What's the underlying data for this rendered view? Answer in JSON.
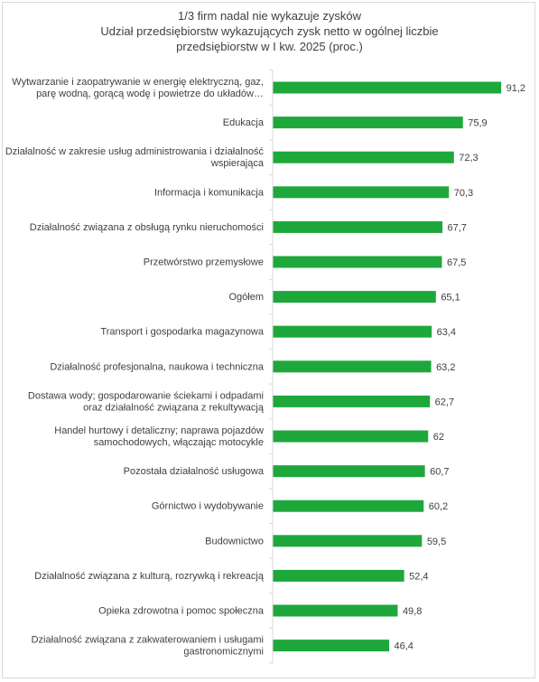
{
  "chart_data": {
    "type": "bar",
    "orientation": "horizontal",
    "title": [
      "1/3 firm nadal nie wykazuje zysków",
      "Udział  przedsiębiorstw wykazujących zysk netto w ogólnej liczbie",
      "przedsiębiorstw w I kw. 2025 (proc.)"
    ],
    "categories": [
      [
        "Wytwarzanie i zaopatrywanie w energię elektryczną, gaz,",
        "parę wodną, gorącą wodę i powietrze do układów…"
      ],
      [
        "Edukacja"
      ],
      [
        "Działalność w zakresie usług administrowania i działalność",
        "wspierająca"
      ],
      [
        "Informacja i komunikacja"
      ],
      [
        "Działalność związana z obsługą rynku nieruchomości"
      ],
      [
        "Przetwórstwo przemysłowe"
      ],
      [
        "Ogółem"
      ],
      [
        "Transport i gospodarka magazynowa"
      ],
      [
        "Działalność profesjonalna, naukowa i techniczna"
      ],
      [
        "Dostawa wody; gospodarowanie ściekami i odpadami",
        "oraz działalność związana z rekultywacją"
      ],
      [
        "Handel hurtowy i detaliczny; naprawa pojazdów",
        "samochodowych, włączając motocykle"
      ],
      [
        "Pozostała działalność usługowa"
      ],
      [
        "Górnictwo i wydobywanie"
      ],
      [
        "Budownictwo"
      ],
      [
        "Działalność związana z kulturą, rozrywką i rekreacją"
      ],
      [
        "Opieka zdrowotna i pomoc społeczna"
      ],
      [
        "Działalność związana z zakwaterowaniem i usługami",
        "gastronomicznymi"
      ]
    ],
    "values": [
      91.2,
      75.9,
      72.3,
      70.3,
      67.7,
      67.5,
      65.1,
      63.4,
      63.2,
      62.7,
      62,
      60.7,
      60.2,
      59.5,
      52.4,
      49.8,
      46.4
    ],
    "value_labels": [
      "91,2",
      "75,9",
      "72,3",
      "70,3",
      "67,7",
      "67,5",
      "65,1",
      "63,4",
      "63,2",
      "62,7",
      "62",
      "60,7",
      "60,2",
      "59,5",
      "52,4",
      "49,8",
      "46,4"
    ],
    "bar_color": "#1ea83c",
    "axis_color": "#d9d9d9",
    "text_color": "#404040",
    "xlim": [
      0,
      100
    ],
    "grid": false,
    "legend": "none"
  }
}
